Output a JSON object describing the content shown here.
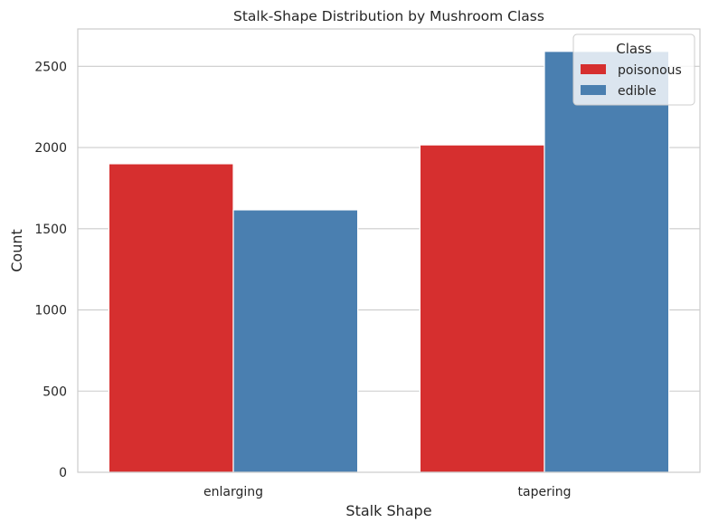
{
  "chart_data": {
    "type": "bar",
    "title": "Stalk-Shape Distribution by Mushroom Class",
    "xlabel": "Stalk Shape",
    "ylabel": "Count",
    "categories": [
      "enlarging",
      "tapering"
    ],
    "series": [
      {
        "name": "poisonous",
        "values": [
          1900,
          2016
        ],
        "color": "#d62f2f"
      },
      {
        "name": "edible",
        "values": [
          1616,
          2592
        ],
        "color": "#4a7fb0"
      }
    ],
    "ylim": [
      0,
      2730
    ],
    "yticks": [
      0,
      500,
      1000,
      1500,
      2000,
      2500
    ],
    "grid": true,
    "legend": {
      "title": "Class",
      "placement": "top-right"
    }
  }
}
